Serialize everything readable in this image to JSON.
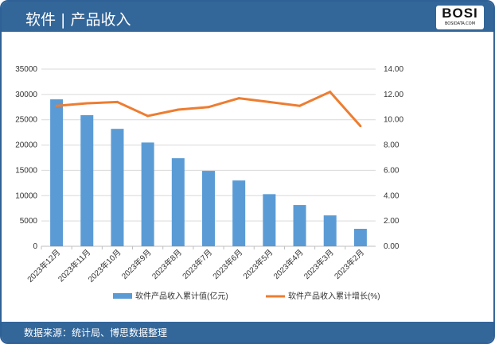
{
  "header": {
    "title": "软件 | 产品收入",
    "logo_text": "BOSI",
    "logo_sub": "BOSIDATA.COM"
  },
  "footer": {
    "source": "数据来源：统计局、博思数据整理"
  },
  "colors": {
    "bar": "#5b9bd5",
    "line": "#ed7d31",
    "header": "#336699"
  },
  "chart_data": {
    "type": "bar+line",
    "categories": [
      "2023年12月",
      "2023年11月",
      "2023年10月",
      "2023年9月",
      "2023年8月",
      "2023年7月",
      "2023年6月",
      "2023年5月",
      "2023年4月",
      "2023年3月",
      "2023年2月"
    ],
    "series": [
      {
        "name": "软件产品收入累计值(亿元)",
        "type": "bar",
        "axis": "left",
        "values": [
          29030,
          25900,
          23200,
          20500,
          17400,
          14900,
          13000,
          10300,
          8150,
          6100,
          3450
        ]
      },
      {
        "name": "软件产品收入累计增长(%)",
        "type": "line",
        "axis": "right",
        "values": [
          11.1,
          11.3,
          11.4,
          10.3,
          10.8,
          11.0,
          11.7,
          11.4,
          11.1,
          12.2,
          9.5
        ]
      }
    ],
    "y_left": {
      "range": [
        0,
        35000
      ],
      "ticks": [
        "0",
        "5000",
        "10000",
        "15000",
        "20000",
        "25000",
        "30000",
        "35000"
      ]
    },
    "y_right": {
      "range": [
        0,
        14
      ],
      "ticks": [
        "0.00",
        "2.00",
        "4.00",
        "6.00",
        "8.00",
        "10.00",
        "12.00",
        "14.00"
      ]
    },
    "grid": true,
    "legend": "bottom"
  }
}
